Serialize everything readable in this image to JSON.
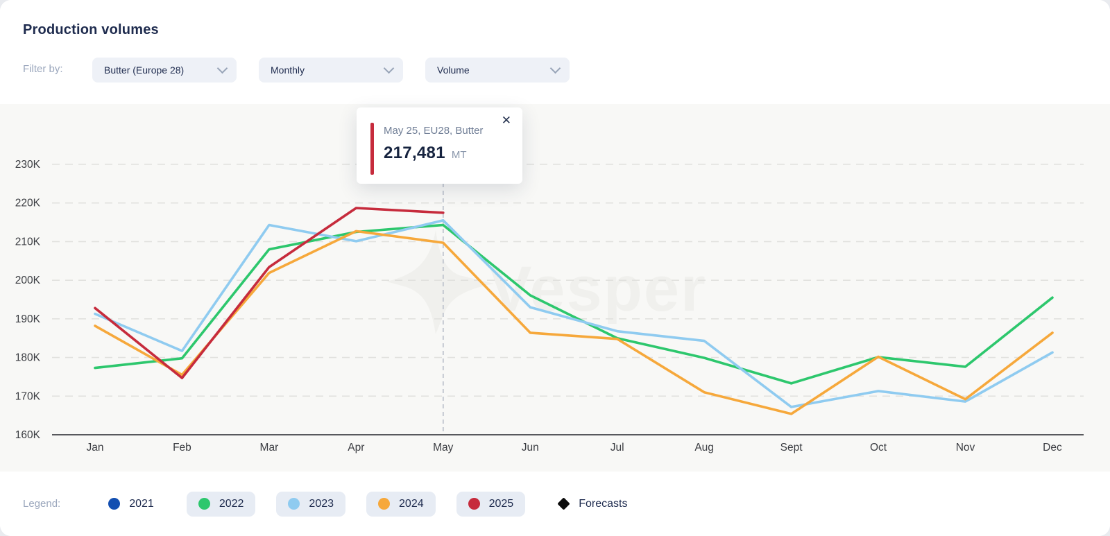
{
  "header": {
    "title": "Production volumes",
    "filter_label": "Filter by:",
    "filters": [
      {
        "value": "Butter (Europe 28)"
      },
      {
        "value": "Monthly"
      },
      {
        "value": "Volume"
      }
    ]
  },
  "tooltip": {
    "title": "May 25, EU28, Butter",
    "value": "217,481",
    "unit": "MT",
    "close": "✕",
    "accent_color": "#c62b3c"
  },
  "watermark": {
    "text": "Vesper"
  },
  "legend": {
    "label": "Legend:",
    "items": [
      {
        "label": "2021",
        "color": "#134fb1",
        "shape": "dot",
        "pill": false
      },
      {
        "label": "2022",
        "color": "#2dc76d",
        "shape": "dot",
        "pill": true
      },
      {
        "label": "2023",
        "color": "#8fcbf0",
        "shape": "dot",
        "pill": true
      },
      {
        "label": "2024",
        "color": "#f6a83b",
        "shape": "dot",
        "pill": true
      },
      {
        "label": "2025",
        "color": "#c62b3c",
        "shape": "dot",
        "pill": true
      },
      {
        "label": "Forecasts",
        "color": "#0b0b0b",
        "shape": "diamond",
        "pill": false
      }
    ]
  },
  "chart_data": {
    "type": "line",
    "unit": "MT",
    "x": [
      "Jan",
      "Feb",
      "Mar",
      "Apr",
      "May",
      "Jun",
      "Jul",
      "Aug",
      "Sept",
      "Oct",
      "Nov",
      "Dec"
    ],
    "y_ticks": [
      "230K",
      "220K",
      "210K",
      "200K",
      "190K",
      "180K",
      "170K",
      "160K"
    ],
    "ylim": [
      160000,
      235000
    ],
    "grid": true,
    "selected_month_index": 4,
    "selected_point": {
      "series": "2025",
      "month": "May",
      "value": 217481,
      "label": "217,481 MT"
    },
    "series": [
      {
        "name": "2021",
        "color": "#134fb1",
        "visible": false,
        "values": []
      },
      {
        "name": "2022",
        "color": "#2dc76d",
        "visible": true,
        "values": [
          177300,
          179800,
          208000,
          212500,
          214300,
          196100,
          185000,
          179900,
          173300,
          180100,
          177600,
          195500
        ]
      },
      {
        "name": "2023",
        "color": "#8fcbf0",
        "visible": true,
        "values": [
          191300,
          181700,
          214300,
          210100,
          215500,
          193000,
          186800,
          184300,
          167200,
          171300,
          168600,
          181300
        ]
      },
      {
        "name": "2024",
        "color": "#f6a83b",
        "visible": true,
        "values": [
          188200,
          175500,
          201900,
          212700,
          209700,
          186400,
          184800,
          171000,
          165400,
          180200,
          169200,
          186400
        ]
      },
      {
        "name": "2025",
        "color": "#c62b3c",
        "visible": true,
        "values": [
          192800,
          174700,
          203400,
          218700,
          217481
        ]
      }
    ]
  }
}
